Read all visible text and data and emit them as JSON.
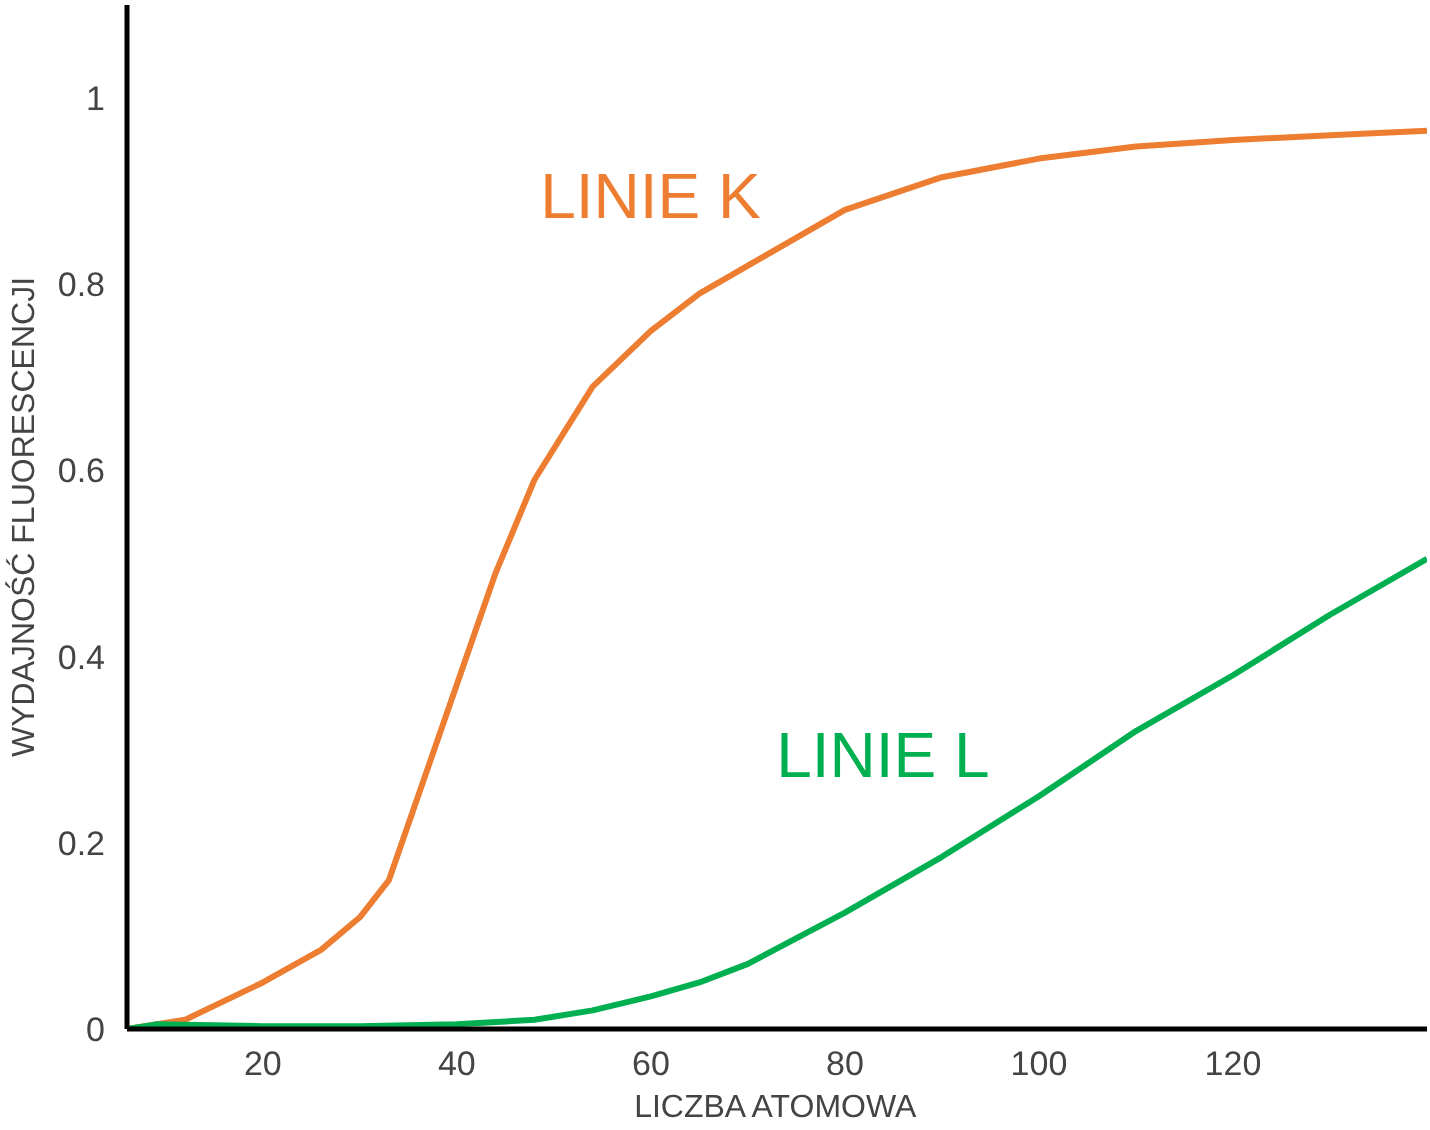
{
  "chart_data": {
    "type": "line",
    "xlabel": "LICZBA ATOMOWA",
    "ylabel": "WYDAJNOŚĆ FLUORESCENCJI",
    "xlim": [
      6,
      140
    ],
    "ylim": [
      0,
      1.1
    ],
    "xticks": [
      20,
      40,
      60,
      80,
      100,
      120
    ],
    "yticks": [
      0,
      0.2,
      0.4,
      0.6,
      0.8,
      1
    ],
    "grid": false,
    "series": [
      {
        "name": "LINIE K",
        "color": "#ed7d31",
        "x": [
          6,
          12,
          20,
          26,
          30,
          33,
          36,
          40,
          44,
          48,
          54,
          60,
          65,
          70,
          80,
          90,
          100,
          110,
          120,
          130,
          140
        ],
        "values": [
          0,
          0.01,
          0.05,
          0.085,
          0.12,
          0.16,
          0.25,
          0.37,
          0.49,
          0.59,
          0.69,
          0.75,
          0.79,
          0.82,
          0.88,
          0.915,
          0.935,
          0.948,
          0.955,
          0.96,
          0.965
        ]
      },
      {
        "name": "LINIE L",
        "color": "#00b050",
        "x": [
          6,
          9,
          20,
          30,
          40,
          48,
          54,
          60,
          65,
          70,
          80,
          90,
          100,
          110,
          120,
          130,
          140
        ],
        "values": [
          0,
          0.005,
          0.003,
          0.003,
          0.005,
          0.01,
          0.02,
          0.035,
          0.05,
          0.07,
          0.125,
          0.185,
          0.25,
          0.32,
          0.38,
          0.445,
          0.505
        ]
      }
    ]
  }
}
